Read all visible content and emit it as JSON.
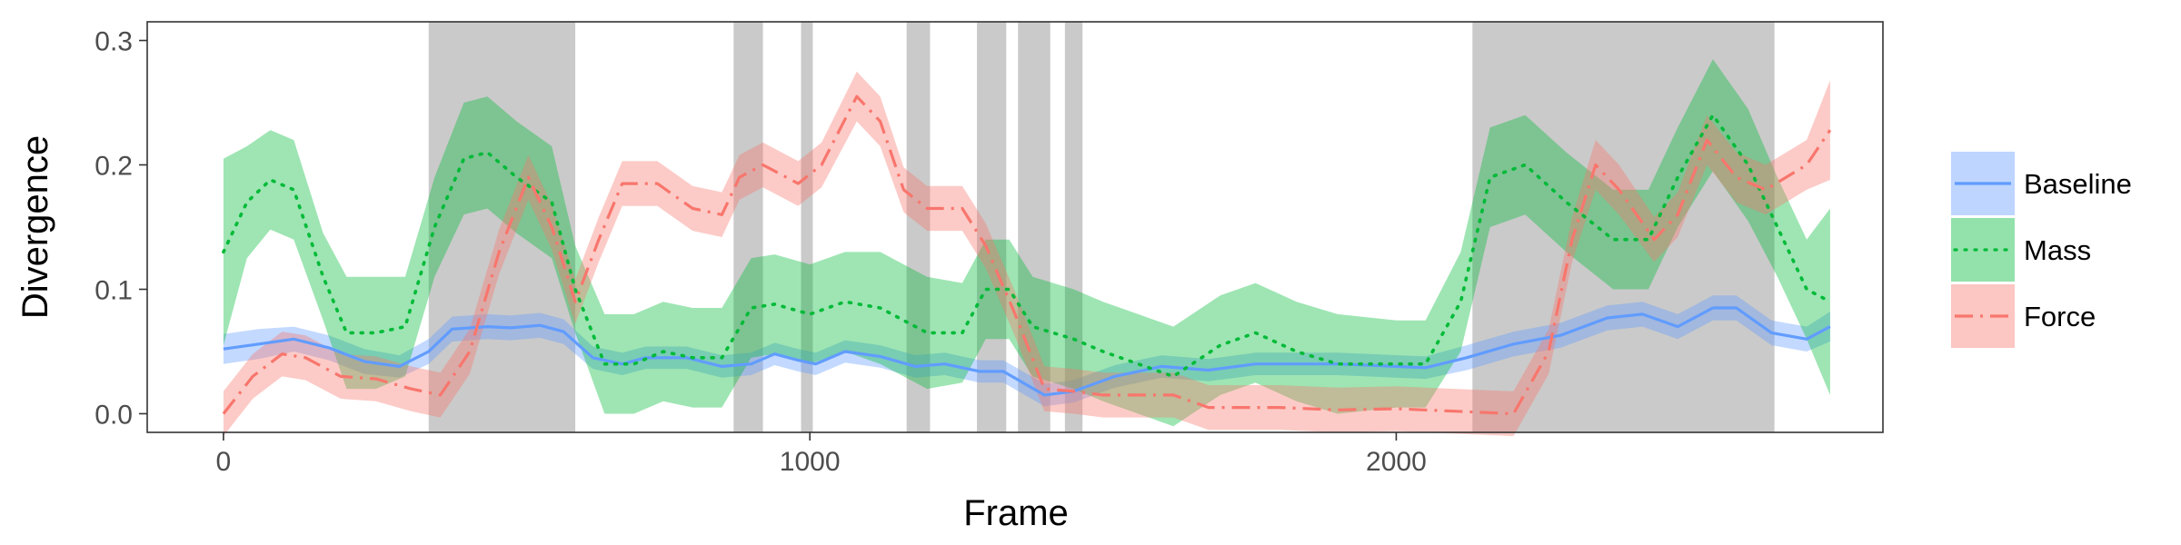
{
  "chart_data": {
    "type": "line",
    "title": "",
    "xlabel": "Frame",
    "ylabel": "Divergence",
    "xlim": [
      -130,
      2830
    ],
    "ylim": [
      -0.015,
      0.315
    ],
    "x_ticks": [
      0,
      1000,
      2000
    ],
    "y_ticks": [
      0.0,
      0.1,
      0.2,
      0.3
    ],
    "x_tick_labels": [
      "0",
      "1000",
      "2000"
    ],
    "y_tick_labels": [
      "0.0",
      "0.1",
      "0.2",
      "0.3"
    ],
    "grid": false,
    "legend_position": "right",
    "shaded_regions": [
      [
        350,
        600
      ],
      [
        870,
        920
      ],
      [
        985,
        1005
      ],
      [
        1165,
        1205
      ],
      [
        1285,
        1335
      ],
      [
        1355,
        1410
      ],
      [
        1435,
        1465
      ],
      [
        2130,
        2645
      ]
    ],
    "series": [
      {
        "name": "Baseline",
        "color": "#619CFF",
        "dash": "",
        "points": [
          [
            0,
            0.052
          ],
          [
            60,
            0.056
          ],
          [
            120,
            0.06
          ],
          [
            180,
            0.053
          ],
          [
            240,
            0.042
          ],
          [
            300,
            0.038
          ],
          [
            350,
            0.05
          ],
          [
            390,
            0.068
          ],
          [
            450,
            0.07
          ],
          [
            490,
            0.069
          ],
          [
            540,
            0.071
          ],
          [
            580,
            0.066
          ],
          [
            630,
            0.045
          ],
          [
            680,
            0.04
          ],
          [
            720,
            0.045
          ],
          [
            790,
            0.045
          ],
          [
            850,
            0.038
          ],
          [
            900,
            0.04
          ],
          [
            940,
            0.048
          ],
          [
            980,
            0.043
          ],
          [
            1010,
            0.04
          ],
          [
            1060,
            0.05
          ],
          [
            1120,
            0.046
          ],
          [
            1180,
            0.038
          ],
          [
            1230,
            0.04
          ],
          [
            1290,
            0.034
          ],
          [
            1330,
            0.034
          ],
          [
            1400,
            0.015
          ],
          [
            1450,
            0.018
          ],
          [
            1520,
            0.03
          ],
          [
            1600,
            0.038
          ],
          [
            1680,
            0.035
          ],
          [
            1760,
            0.04
          ],
          [
            1900,
            0.04
          ],
          [
            2050,
            0.037
          ],
          [
            2120,
            0.045
          ],
          [
            2200,
            0.056
          ],
          [
            2280,
            0.063
          ],
          [
            2360,
            0.077
          ],
          [
            2420,
            0.08
          ],
          [
            2480,
            0.07
          ],
          [
            2540,
            0.085
          ],
          [
            2580,
            0.085
          ],
          [
            2640,
            0.065
          ],
          [
            2700,
            0.06
          ],
          [
            2740,
            0.07
          ]
        ],
        "band": [
          0.012,
          0.012,
          0.01,
          0.01,
          0.01,
          0.009,
          0.01,
          0.01,
          0.01,
          0.01,
          0.01,
          0.01,
          0.009,
          0.009,
          0.009,
          0.009,
          0.009,
          0.009,
          0.009,
          0.009,
          0.009,
          0.009,
          0.009,
          0.009,
          0.009,
          0.009,
          0.009,
          0.009,
          0.009,
          0.009,
          0.009,
          0.009,
          0.009,
          0.009,
          0.009,
          0.01,
          0.01,
          0.01,
          0.01,
          0.01,
          0.01,
          0.01,
          0.01,
          0.01,
          0.01,
          0.012
        ]
      },
      {
        "name": "Mass",
        "color": "#00BA38",
        "dash": "2,9",
        "points": [
          [
            0,
            0.13
          ],
          [
            40,
            0.17
          ],
          [
            80,
            0.188
          ],
          [
            120,
            0.18
          ],
          [
            170,
            0.11
          ],
          [
            210,
            0.065
          ],
          [
            260,
            0.065
          ],
          [
            310,
            0.07
          ],
          [
            360,
            0.15
          ],
          [
            410,
            0.205
          ],
          [
            450,
            0.21
          ],
          [
            500,
            0.19
          ],
          [
            560,
            0.17
          ],
          [
            600,
            0.1
          ],
          [
            650,
            0.04
          ],
          [
            700,
            0.04
          ],
          [
            750,
            0.05
          ],
          [
            800,
            0.045
          ],
          [
            850,
            0.045
          ],
          [
            900,
            0.085
          ],
          [
            940,
            0.088
          ],
          [
            1000,
            0.08
          ],
          [
            1060,
            0.09
          ],
          [
            1120,
            0.085
          ],
          [
            1200,
            0.065
          ],
          [
            1260,
            0.065
          ],
          [
            1300,
            0.1
          ],
          [
            1340,
            0.1
          ],
          [
            1380,
            0.07
          ],
          [
            1450,
            0.06
          ],
          [
            1500,
            0.05
          ],
          [
            1560,
            0.04
          ],
          [
            1620,
            0.03
          ],
          [
            1700,
            0.055
          ],
          [
            1760,
            0.065
          ],
          [
            1830,
            0.05
          ],
          [
            1900,
            0.04
          ],
          [
            2000,
            0.04
          ],
          [
            2050,
            0.04
          ],
          [
            2110,
            0.09
          ],
          [
            2160,
            0.19
          ],
          [
            2220,
            0.2
          ],
          [
            2290,
            0.17
          ],
          [
            2370,
            0.14
          ],
          [
            2430,
            0.14
          ],
          [
            2480,
            0.19
          ],
          [
            2540,
            0.24
          ],
          [
            2600,
            0.2
          ],
          [
            2650,
            0.15
          ],
          [
            2700,
            0.1
          ],
          [
            2740,
            0.09
          ]
        ],
        "band": [
          0.075,
          0.045,
          0.04,
          0.04,
          0.035,
          0.045,
          0.045,
          0.04,
          0.04,
          0.045,
          0.045,
          0.045,
          0.045,
          0.035,
          0.04,
          0.04,
          0.04,
          0.04,
          0.04,
          0.04,
          0.04,
          0.04,
          0.04,
          0.045,
          0.045,
          0.04,
          0.04,
          0.04,
          0.04,
          0.04,
          0.04,
          0.04,
          0.04,
          0.04,
          0.04,
          0.04,
          0.04,
          0.035,
          0.035,
          0.04,
          0.04,
          0.04,
          0.04,
          0.04,
          0.04,
          0.04,
          0.045,
          0.045,
          0.04,
          0.04,
          0.075
        ]
      },
      {
        "name": "Force",
        "color": "#F8766D",
        "dash": "20,8,3,8",
        "points": [
          [
            0,
            0.0
          ],
          [
            50,
            0.03
          ],
          [
            100,
            0.048
          ],
          [
            140,
            0.045
          ],
          [
            200,
            0.03
          ],
          [
            260,
            0.028
          ],
          [
            320,
            0.02
          ],
          [
            370,
            0.015
          ],
          [
            420,
            0.05
          ],
          [
            470,
            0.13
          ],
          [
            520,
            0.19
          ],
          [
            560,
            0.15
          ],
          [
            600,
            0.09
          ],
          [
            640,
            0.14
          ],
          [
            680,
            0.185
          ],
          [
            740,
            0.185
          ],
          [
            800,
            0.165
          ],
          [
            850,
            0.16
          ],
          [
            880,
            0.19
          ],
          [
            920,
            0.2
          ],
          [
            980,
            0.185
          ],
          [
            1020,
            0.2
          ],
          [
            1080,
            0.255
          ],
          [
            1120,
            0.235
          ],
          [
            1160,
            0.18
          ],
          [
            1200,
            0.165
          ],
          [
            1260,
            0.165
          ],
          [
            1300,
            0.135
          ],
          [
            1350,
            0.08
          ],
          [
            1400,
            0.02
          ],
          [
            1450,
            0.018
          ],
          [
            1500,
            0.015
          ],
          [
            1560,
            0.015
          ],
          [
            1620,
            0.015
          ],
          [
            1680,
            0.005
          ],
          [
            1800,
            0.005
          ],
          [
            1900,
            0.003
          ],
          [
            2000,
            0.004
          ],
          [
            2100,
            0.002
          ],
          [
            2200,
            0.0
          ],
          [
            2260,
            0.05
          ],
          [
            2300,
            0.14
          ],
          [
            2340,
            0.2
          ],
          [
            2380,
            0.18
          ],
          [
            2440,
            0.14
          ],
          [
            2480,
            0.16
          ],
          [
            2530,
            0.22
          ],
          [
            2580,
            0.19
          ],
          [
            2630,
            0.18
          ],
          [
            2700,
            0.2
          ],
          [
            2740,
            0.228
          ]
        ],
        "band": [
          0.018,
          0.018,
          0.018,
          0.018,
          0.018,
          0.018,
          0.018,
          0.018,
          0.018,
          0.018,
          0.018,
          0.018,
          0.018,
          0.018,
          0.018,
          0.018,
          0.018,
          0.018,
          0.018,
          0.018,
          0.018,
          0.018,
          0.02,
          0.02,
          0.018,
          0.018,
          0.018,
          0.018,
          0.018,
          0.018,
          0.018,
          0.018,
          0.018,
          0.018,
          0.018,
          0.018,
          0.018,
          0.018,
          0.018,
          0.018,
          0.018,
          0.018,
          0.02,
          0.02,
          0.018,
          0.018,
          0.02,
          0.02,
          0.02,
          0.02,
          0.04
        ]
      }
    ]
  }
}
